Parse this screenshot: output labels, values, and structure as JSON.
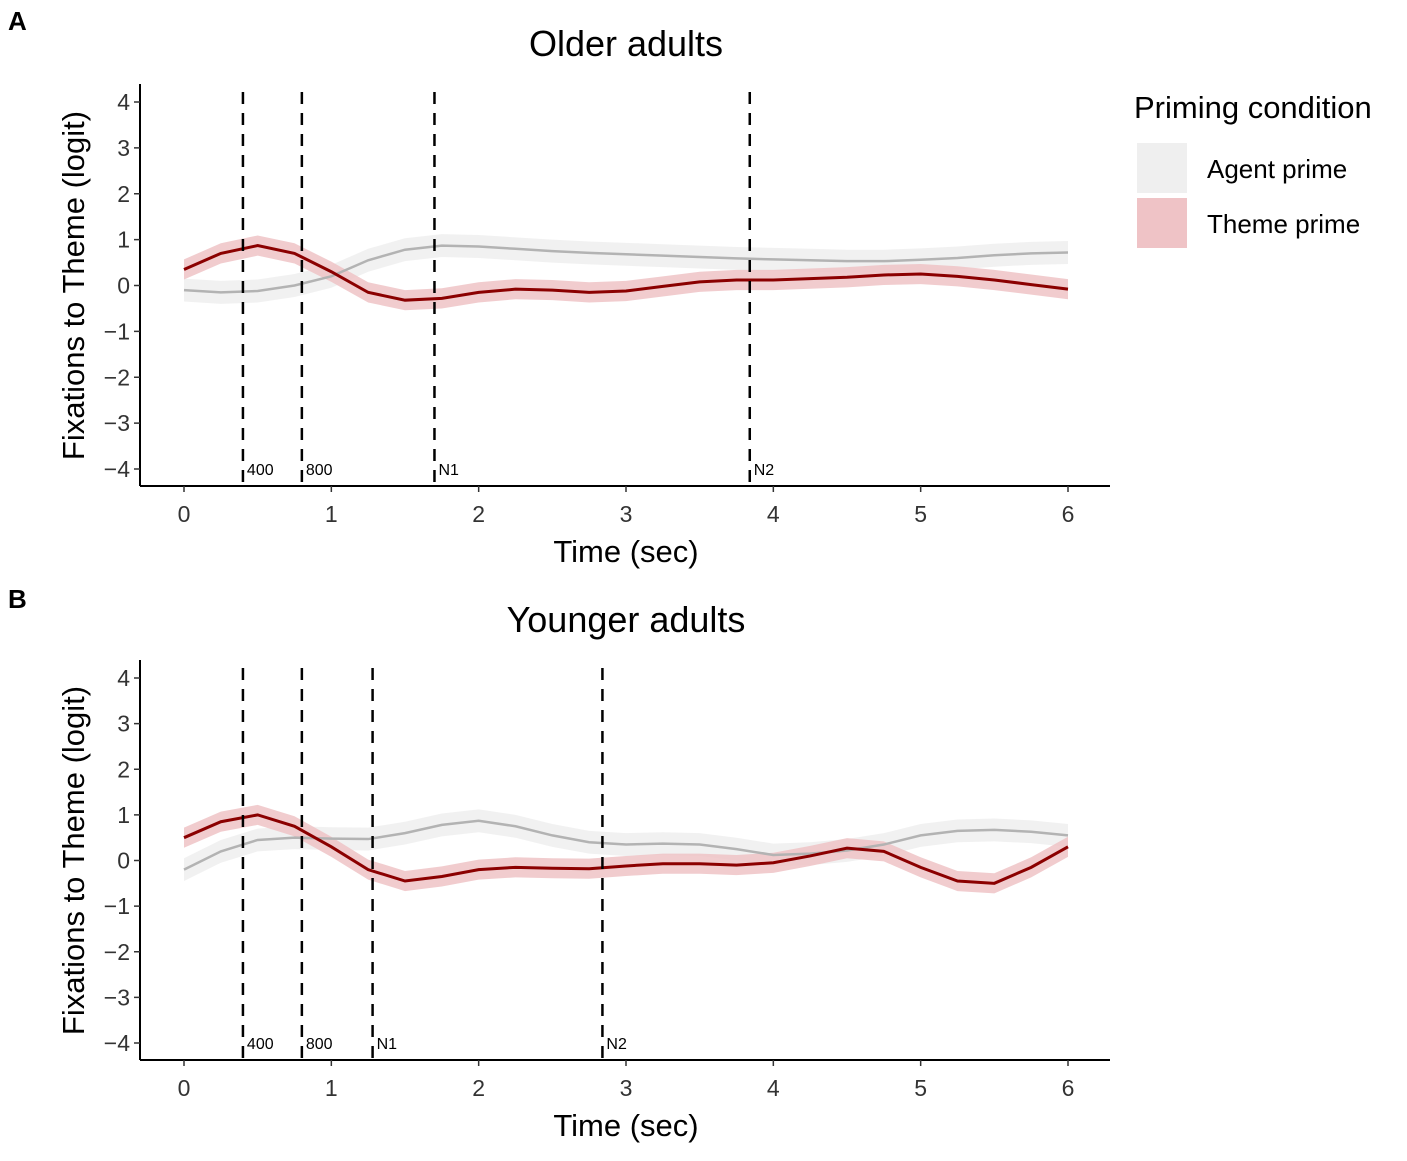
{
  "legend": {
    "title": "Priming condition",
    "placement": "right",
    "items": [
      {
        "label": "Agent prime",
        "line_color": "#b3b3b3",
        "fill_color": "#efefef"
      },
      {
        "label": "Theme prime",
        "line_color": "#8b0000",
        "fill_color": "#efc3c6"
      }
    ]
  },
  "chart_data": [
    {
      "type": "line",
      "panel_label": "A",
      "title": "Older adults",
      "xlabel": "Time (sec)",
      "ylabel": "Fixations to Theme (logit)",
      "xlim": [
        0,
        6
      ],
      "ylim": [
        -4,
        4
      ],
      "xticks": [
        "0",
        "1",
        "2",
        "3",
        "4",
        "5",
        "6"
      ],
      "yticks": [
        "−4",
        "−3",
        "−2",
        "−1",
        "0",
        "1",
        "2",
        "3",
        "4"
      ],
      "grid": false,
      "x": [
        0,
        0.25,
        0.5,
        0.75,
        1,
        1.25,
        1.5,
        1.75,
        2,
        2.25,
        2.5,
        2.75,
        3,
        3.25,
        3.5,
        3.75,
        4,
        4.25,
        4.5,
        4.75,
        5,
        5.25,
        5.5,
        5.75,
        6
      ],
      "series": [
        {
          "name": "Agent prime",
          "ci": 0.25,
          "values": [
            -0.1,
            -0.15,
            -0.12,
            0,
            0.2,
            0.55,
            0.78,
            0.87,
            0.85,
            0.8,
            0.75,
            0.71,
            0.68,
            0.65,
            0.62,
            0.59,
            0.57,
            0.55,
            0.53,
            0.53,
            0.56,
            0.6,
            0.66,
            0.7,
            0.72
          ]
        },
        {
          "name": "Theme prime",
          "ci": 0.22,
          "values": [
            0.35,
            0.7,
            0.87,
            0.7,
            0.3,
            -0.15,
            -0.32,
            -0.28,
            -0.15,
            -0.08,
            -0.1,
            -0.15,
            -0.12,
            -0.02,
            0.08,
            0.12,
            0.12,
            0.15,
            0.18,
            0.23,
            0.25,
            0.2,
            0.12,
            0.02,
            -0.08
          ]
        }
      ],
      "vlines": [
        {
          "x": 0.4,
          "label": "400"
        },
        {
          "x": 0.8,
          "label": "800"
        },
        {
          "x": 1.7,
          "label": "N1"
        },
        {
          "x": 3.84,
          "label": "N2"
        }
      ]
    },
    {
      "type": "line",
      "panel_label": "B",
      "title": "Younger adults",
      "xlabel": "Time (sec)",
      "ylabel": "Fixations to Theme (logit)",
      "xlim": [
        0,
        6
      ],
      "ylim": [
        -4,
        4
      ],
      "xticks": [
        "0",
        "1",
        "2",
        "3",
        "4",
        "5",
        "6"
      ],
      "yticks": [
        "−4",
        "−3",
        "−2",
        "−1",
        "0",
        "1",
        "2",
        "3",
        "4"
      ],
      "grid": false,
      "x": [
        0,
        0.25,
        0.5,
        0.75,
        1,
        1.25,
        1.5,
        1.75,
        2,
        2.25,
        2.5,
        2.75,
        3,
        3.25,
        3.5,
        3.75,
        4,
        4.25,
        4.5,
        4.75,
        5,
        5.25,
        5.5,
        5.75,
        6
      ],
      "series": [
        {
          "name": "Agent prime",
          "ci": 0.25,
          "values": [
            -0.2,
            0.2,
            0.45,
            0.5,
            0.48,
            0.47,
            0.6,
            0.78,
            0.87,
            0.75,
            0.55,
            0.4,
            0.35,
            0.37,
            0.35,
            0.25,
            0.12,
            0.15,
            0.22,
            0.35,
            0.55,
            0.65,
            0.67,
            0.63,
            0.55
          ]
        },
        {
          "name": "Theme prime",
          "ci": 0.22,
          "values": [
            0.5,
            0.85,
            1.0,
            0.75,
            0.3,
            -0.2,
            -0.45,
            -0.35,
            -0.2,
            -0.15,
            -0.17,
            -0.18,
            -0.12,
            -0.07,
            -0.07,
            -0.1,
            -0.05,
            0.1,
            0.27,
            0.2,
            -0.15,
            -0.45,
            -0.5,
            -0.15,
            0.3
          ]
        }
      ],
      "vlines": [
        {
          "x": 0.4,
          "label": "400"
        },
        {
          "x": 0.8,
          "label": "800"
        },
        {
          "x": 1.28,
          "label": "N1"
        },
        {
          "x": 2.84,
          "label": "N2"
        }
      ]
    }
  ]
}
